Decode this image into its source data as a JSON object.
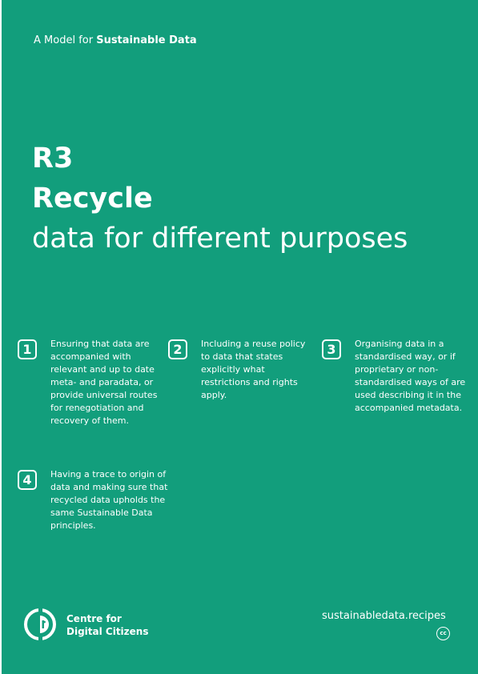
{
  "header": {
    "kicker_prefix": "A Model for ",
    "kicker_bold": "Sustainable Data"
  },
  "hero": {
    "code": "R3",
    "title": "Recycle",
    "subtitle": "data for different purposes"
  },
  "points": [
    {
      "number": "1",
      "text": "Ensuring that data are accompanied with relevant and up to date meta- and paradata, or provide universal routes for renegotiation and recovery of them."
    },
    {
      "number": "2",
      "text": "Including a reuse policy to data that states explicitly what restrictions and rights apply."
    },
    {
      "number": "3",
      "text": "Organising data in a standardised way, or if proprietary or non-standardised ways of are used describing it in the accompanied metadata."
    },
    {
      "number": "4",
      "text": "Having a trace to origin of data and making sure that recycled data upholds the same Sustainable Data principles."
    }
  ],
  "footer": {
    "org_name": "Centre for\nDigital Citizens",
    "logo_icon": "centre-for-digital-citizens-logo",
    "site": "sustainabledata.recipes",
    "cc_icon_label": "cc"
  },
  "colors": {
    "background": "#129e7c",
    "text": "#ffffff"
  }
}
